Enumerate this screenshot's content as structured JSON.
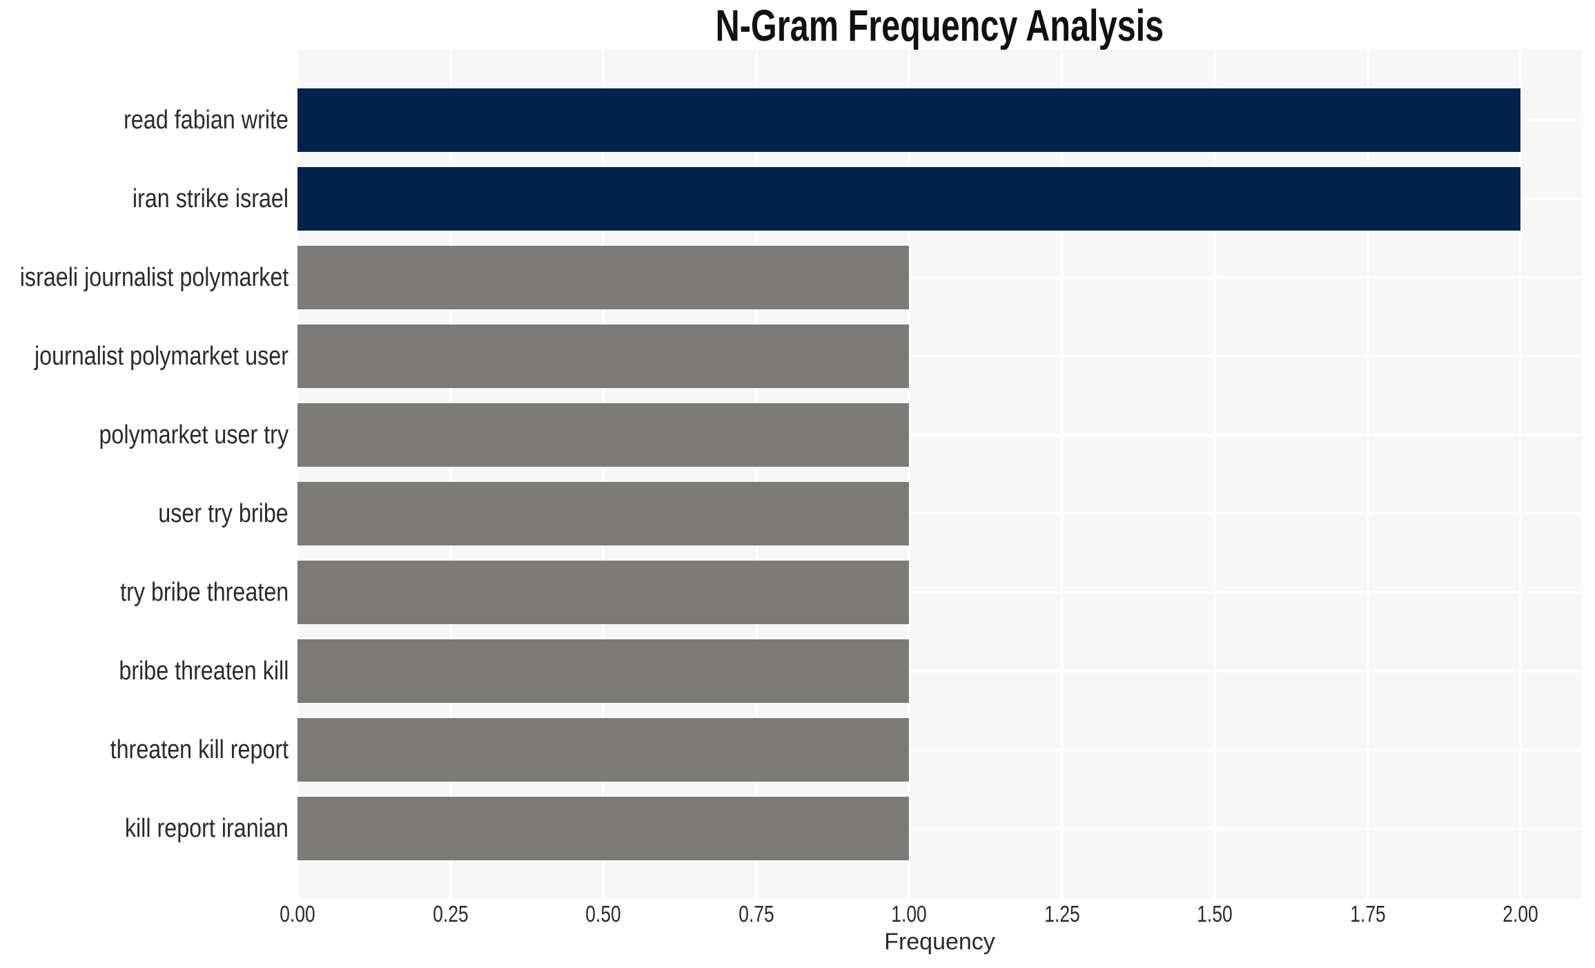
{
  "chart_data": {
    "type": "bar",
    "orientation": "horizontal",
    "title": "N-Gram Frequency Analysis",
    "xlabel": "Frequency",
    "ylabel": "",
    "categories": [
      "read fabian write",
      "iran strike israel",
      "israeli journalist polymarket",
      "journalist polymarket user",
      "polymarket user try",
      "user try bribe",
      "try bribe threaten",
      "bribe threaten kill",
      "threaten kill report",
      "kill report iranian"
    ],
    "values": [
      2,
      2,
      1,
      1,
      1,
      1,
      1,
      1,
      1,
      1
    ],
    "bar_colors": [
      "#00234d",
      "#00234d",
      "#7b7a77",
      "#7b7a77",
      "#7b7a77",
      "#7b7a77",
      "#7b7a77",
      "#7b7a77",
      "#7b7a77",
      "#7b7a77"
    ],
    "xlim": [
      0,
      2.1
    ],
    "x_ticks": [
      {
        "value": 0.0,
        "label": "0.00"
      },
      {
        "value": 0.25,
        "label": "0.25"
      },
      {
        "value": 0.5,
        "label": "0.50"
      },
      {
        "value": 0.75,
        "label": "0.75"
      },
      {
        "value": 1.0,
        "label": "1.00"
      },
      {
        "value": 1.25,
        "label": "1.25"
      },
      {
        "value": 1.5,
        "label": "1.50"
      },
      {
        "value": 1.75,
        "label": "1.75"
      },
      {
        "value": 2.0,
        "label": "2.00"
      }
    ],
    "grid": true,
    "legend": false,
    "colors": {
      "panel_background": "#f7f7f7",
      "gridline": "#ffffff",
      "bar_frequency_2": "#00234d",
      "bar_frequency_1": "#7b7a77",
      "text": "#2b2b2b",
      "title_text": "#111111"
    }
  }
}
